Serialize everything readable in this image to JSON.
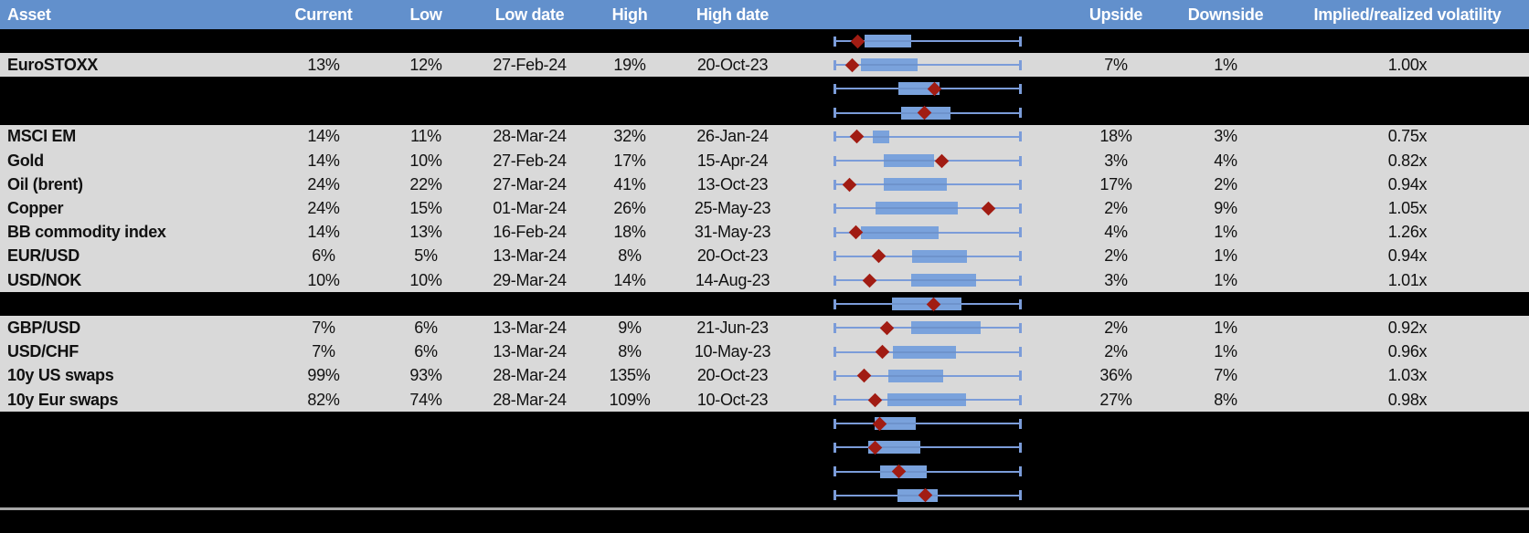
{
  "header": {
    "labels": [
      "Asset",
      "Current",
      "Low",
      "Low date",
      "High",
      "High date",
      "Upside",
      "Downside",
      "Implied/realized volatility"
    ]
  },
  "colors": {
    "header_bg": "#6290cc",
    "row_bg": "#d9d9d9",
    "hidden_row_bg": "#000000",
    "whisker": "#7b9cd9",
    "box_fill": "#7aa2dc",
    "box_stripe": "#6e93cc",
    "marker": "#a11c13",
    "separator": "#a6a6a6"
  },
  "chart_data": {
    "type": "boxplot-row-charts",
    "note": "Each row shows a min-max whisker (normalized 0-100), an interquartile-style box (box_start/box_end %) and a dark red diamond marker (marker %).",
    "legend_position": "none",
    "grid": false
  },
  "rows": [
    {
      "type": "hidden",
      "box_start": 16.5,
      "box_end": 41.3,
      "marker": 13.1
    },
    {
      "type": "data",
      "asset": "EuroSTOXX",
      "current": "13%",
      "low": "12%",
      "low_date": "27-Feb-24",
      "high": "19%",
      "high_date": "20-Oct-23",
      "upside": "7%",
      "downside": "1%",
      "iv_rv": "1.00x",
      "box_start": 14.4,
      "box_end": 44.7,
      "marker": 10.0
    },
    {
      "type": "hidden",
      "box_start": 34.6,
      "box_end": 56.5,
      "marker": 53.7
    },
    {
      "type": "hidden",
      "box_start": 35.8,
      "box_end": 62.1,
      "marker": 48.4
    },
    {
      "type": "data",
      "asset": "MSCI EM",
      "current": "14%",
      "low": "11%",
      "low_date": "28-Mar-24",
      "high": "32%",
      "high_date": "26-Jan-24",
      "upside": "18%",
      "downside": "3%",
      "iv_rv": "0.75x",
      "box_start": 20.9,
      "box_end": 29.8,
      "marker": 12.3
    },
    {
      "type": "data",
      "asset": "Gold",
      "current": "14%",
      "low": "10%",
      "low_date": "27-Feb-24",
      "high": "17%",
      "high_date": "15-Apr-24",
      "upside": "3%",
      "downside": "4%",
      "iv_rv": "0.82x",
      "box_start": 26.6,
      "box_end": 53.3,
      "marker": 57.6
    },
    {
      "type": "data",
      "asset": "Oil (brent)",
      "current": "24%",
      "low": "22%",
      "low_date": "27-Mar-24",
      "high": "41%",
      "high_date": "13-Oct-23",
      "upside": "17%",
      "downside": "2%",
      "iv_rv": "0.94x",
      "box_start": 26.8,
      "box_end": 60.2,
      "marker": 8.7
    },
    {
      "type": "data",
      "asset": "Copper",
      "current": "24%",
      "low": "15%",
      "low_date": "01-Mar-24",
      "high": "26%",
      "high_date": "25-May-23",
      "upside": "2%",
      "downside": "9%",
      "iv_rv": "1.05x",
      "box_start": 22.5,
      "box_end": 66.2,
      "marker": 82.4
    },
    {
      "type": "data",
      "asset": "BB commodity index",
      "current": "14%",
      "low": "13%",
      "low_date": "16-Feb-24",
      "high": "18%",
      "high_date": "31-May-23",
      "upside": "4%",
      "downside": "1%",
      "iv_rv": "1.26x",
      "box_start": 14.4,
      "box_end": 55.7,
      "marker": 12.0
    },
    {
      "type": "data",
      "asset": "EUR/USD",
      "current": "6%",
      "low": "5%",
      "low_date": "13-Mar-24",
      "high": "8%",
      "high_date": "20-Oct-23",
      "upside": "2%",
      "downside": "1%",
      "iv_rv": "0.94x",
      "box_start": 41.9,
      "box_end": 71.0,
      "marker": 24.1
    },
    {
      "type": "data",
      "asset": "USD/NOK",
      "current": "10%",
      "low": "10%",
      "low_date": "29-Mar-24",
      "high": "14%",
      "high_date": "14-Aug-23",
      "upside": "3%",
      "downside": "1%",
      "iv_rv": "1.01x",
      "box_start": 41.1,
      "box_end": 75.9,
      "marker": 19.3
    },
    {
      "type": "hidden",
      "box_start": 31.1,
      "box_end": 67.8,
      "marker": 53.3
    },
    {
      "type": "data",
      "asset": "GBP/USD",
      "current": "7%",
      "low": "6%",
      "low_date": "13-Mar-24",
      "high": "9%",
      "high_date": "21-Jun-23",
      "upside": "2%",
      "downside": "1%",
      "iv_rv": "0.92x",
      "box_start": 41.4,
      "box_end": 78.3,
      "marker": 28.2
    },
    {
      "type": "data",
      "asset": "USD/CHF",
      "current": "7%",
      "low": "6%",
      "low_date": "13-Mar-24",
      "high": "8%",
      "high_date": "10-May-23",
      "upside": "2%",
      "downside": "1%",
      "iv_rv": "0.96x",
      "box_start": 31.4,
      "box_end": 64.9,
      "marker": 26.1
    },
    {
      "type": "data",
      "asset": "10y US swaps",
      "current": "99%",
      "low": "93%",
      "low_date": "28-Mar-24",
      "high": "135%",
      "high_date": "20-Oct-23",
      "upside": "36%",
      "downside": "7%",
      "iv_rv": "1.03x",
      "box_start": 29.3,
      "box_end": 58.4,
      "marker": 16.4
    },
    {
      "type": "data",
      "asset": "10y Eur swaps",
      "current": "82%",
      "low": "74%",
      "low_date": "28-Mar-24",
      "high": "109%",
      "high_date": "10-Oct-23",
      "upside": "27%",
      "downside": "8%",
      "iv_rv": "0.98x",
      "box_start": 28.5,
      "box_end": 70.2,
      "marker": 22.2
    },
    {
      "type": "hidden",
      "box_start": 21.7,
      "box_end": 43.5,
      "marker": 24.6
    },
    {
      "type": "hidden",
      "box_start": 18.4,
      "box_end": 46.3,
      "marker": 22.2
    },
    {
      "type": "hidden",
      "box_start": 24.6,
      "box_end": 49.7,
      "marker": 34.6
    },
    {
      "type": "hidden",
      "box_start": 34.1,
      "box_end": 55.2,
      "marker": 48.9
    }
  ]
}
